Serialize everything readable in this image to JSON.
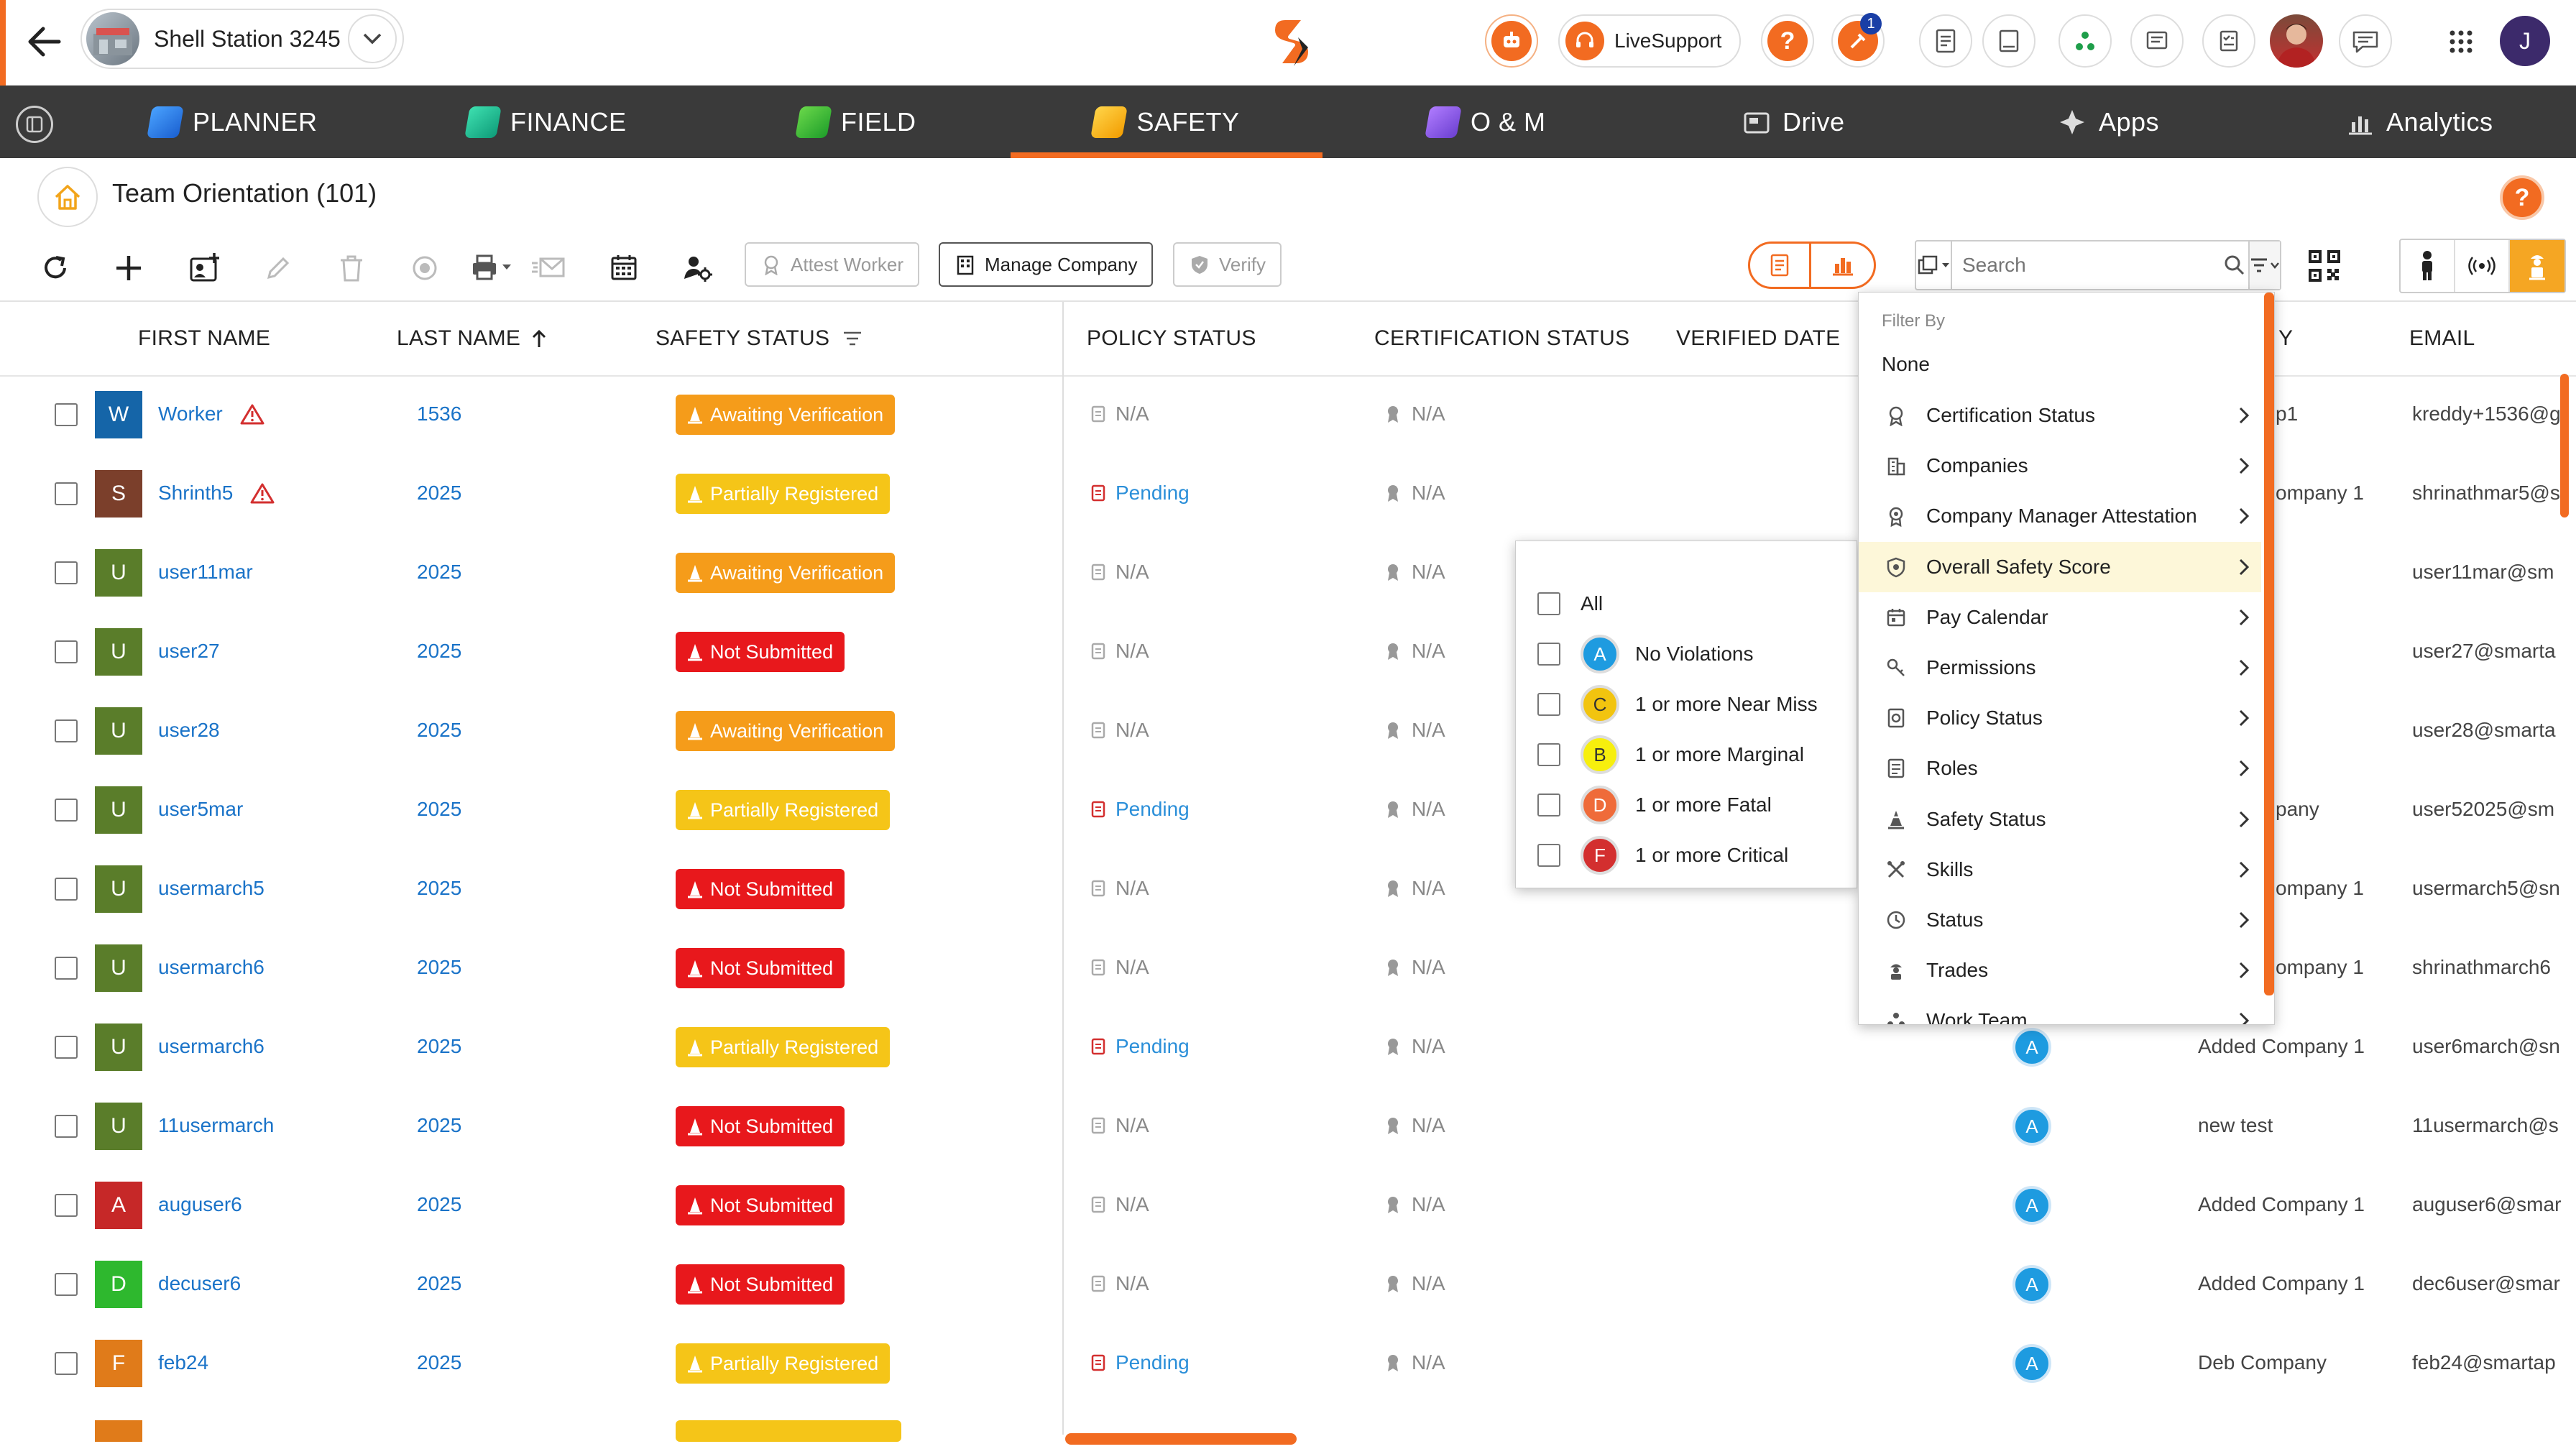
{
  "header": {
    "project_name": "Shell Station 3245",
    "live_support_label": "LiveSupport",
    "notification_count": "1",
    "user_initial": "J"
  },
  "nav": {
    "items": [
      {
        "label": "PLANNER"
      },
      {
        "label": "FINANCE"
      },
      {
        "label": "FIELD"
      },
      {
        "label": "SAFETY"
      },
      {
        "label": "O & M"
      },
      {
        "label": "Drive"
      },
      {
        "label": "Apps"
      },
      {
        "label": "Analytics"
      }
    ],
    "active": "SAFETY"
  },
  "page": {
    "title": "Team Orientation (101)"
  },
  "toolbar": {
    "attest_worker": "Attest Worker",
    "manage_company": "Manage Company",
    "verify": "Verify",
    "search_placeholder": "Search"
  },
  "table": {
    "columns": {
      "first_name": "FIRST NAME",
      "last_name": "LAST NAME",
      "safety_status": "SAFETY STATUS",
      "policy_status": "POLICY STATUS",
      "certification_status": "CERTIFICATION STATUS",
      "verified_date": "VERIFIED DATE",
      "company_partial": "Y",
      "email": "EMAIL"
    },
    "rows": [
      {
        "initial": "W",
        "avatar_color": "#1565a8",
        "first": "Worker",
        "warn": true,
        "last": "1536",
        "safety": "Awaiting Verification",
        "safety_color": "#f59c1a",
        "policy": "N/A",
        "cert": "N/A",
        "score": "",
        "company": "p1",
        "email": "kreddy+1536@g"
      },
      {
        "initial": "S",
        "avatar_color": "#7b3f2b",
        "first": "Shrinth5",
        "warn": true,
        "last": "2025",
        "safety": "Partially Registered",
        "safety_color": "#f5c518",
        "policy": "Pending",
        "cert": "N/A",
        "score": "",
        "company": "ompany 1",
        "email": "shrinathmar5@s"
      },
      {
        "initial": "U",
        "avatar_color": "#5a7d2a",
        "first": "user11mar",
        "warn": false,
        "last": "2025",
        "safety": "Awaiting Verification",
        "safety_color": "#f59c1a",
        "policy": "N/A",
        "cert": "N/A",
        "score": "",
        "company": "",
        "email": "user11mar@sm"
      },
      {
        "initial": "U",
        "avatar_color": "#5a7d2a",
        "first": "user27",
        "warn": false,
        "last": "2025",
        "safety": "Not Submitted",
        "safety_color": "#e8181c",
        "policy": "N/A",
        "cert": "N/A",
        "score": "",
        "company": "",
        "email": "user27@smarta"
      },
      {
        "initial": "U",
        "avatar_color": "#5a7d2a",
        "first": "user28",
        "warn": false,
        "last": "2025",
        "safety": "Awaiting Verification",
        "safety_color": "#f59c1a",
        "policy": "N/A",
        "cert": "N/A",
        "score": "",
        "company": "",
        "email": "user28@smarta"
      },
      {
        "initial": "U",
        "avatar_color": "#5a7d2a",
        "first": "user5mar",
        "warn": false,
        "last": "2025",
        "safety": "Partially Registered",
        "safety_color": "#f5c518",
        "policy": "Pending",
        "cert": "N/A",
        "score": "",
        "company": "pany",
        "email": "user52025@sm"
      },
      {
        "initial": "U",
        "avatar_color": "#5a7d2a",
        "first": "usermarch5",
        "warn": false,
        "last": "2025",
        "safety": "Not Submitted",
        "safety_color": "#e8181c",
        "policy": "N/A",
        "cert": "N/A",
        "score": "",
        "company": "ompany 1",
        "email": "usermarch5@sn"
      },
      {
        "initial": "U",
        "avatar_color": "#5a7d2a",
        "first": "usermarch6",
        "warn": false,
        "last": "2025",
        "safety": "Not Submitted",
        "safety_color": "#e8181c",
        "policy": "N/A",
        "cert": "N/A",
        "score": "",
        "company": "ompany 1",
        "email": "shrinathmarch6"
      },
      {
        "initial": "U",
        "avatar_color": "#5a7d2a",
        "first": "usermarch6",
        "warn": false,
        "last": "2025",
        "safety": "Partially Registered",
        "safety_color": "#f5c518",
        "policy": "Pending",
        "cert": "N/A",
        "score": "A",
        "company": "Added Company 1",
        "email": "user6march@sn"
      },
      {
        "initial": "U",
        "avatar_color": "#5a7d2a",
        "first": "11usermarch",
        "warn": false,
        "last": "2025",
        "safety": "Not Submitted",
        "safety_color": "#e8181c",
        "policy": "N/A",
        "cert": "N/A",
        "score": "A",
        "company": "new test",
        "email": "11usermarch@s"
      },
      {
        "initial": "A",
        "avatar_color": "#c62828",
        "first": "auguser6",
        "warn": false,
        "last": "2025",
        "safety": "Not Submitted",
        "safety_color": "#e8181c",
        "policy": "N/A",
        "cert": "N/A",
        "score": "A",
        "company": "Added Company 1",
        "email": "auguser6@smar"
      },
      {
        "initial": "D",
        "avatar_color": "#2eb82e",
        "first": "decuser6",
        "warn": false,
        "last": "2025",
        "safety": "Not Submitted",
        "safety_color": "#e8181c",
        "policy": "N/A",
        "cert": "N/A",
        "score": "A",
        "company": "Added Company 1",
        "email": "dec6user@smar"
      },
      {
        "initial": "F",
        "avatar_color": "#e07b1a",
        "first": "feb24",
        "warn": false,
        "last": "2025",
        "safety": "Partially Registered",
        "safety_color": "#f5c518",
        "policy": "Pending",
        "cert": "N/A",
        "score": "A",
        "company": "Deb Company",
        "email": "feb24@smartap"
      }
    ]
  },
  "filter_menu": {
    "heading": "Filter By",
    "none_label": "None",
    "items": [
      {
        "label": "Certification Status",
        "icon": "certificate-icon"
      },
      {
        "label": "Companies",
        "icon": "building-icon"
      },
      {
        "label": "Company Manager Attestation",
        "icon": "award-icon"
      },
      {
        "label": "Overall Safety Score",
        "icon": "shield-badge-icon"
      },
      {
        "label": "Pay Calendar",
        "icon": "calendar-icon"
      },
      {
        "label": "Permissions",
        "icon": "key-icon"
      },
      {
        "label": "Policy Status",
        "icon": "policy-icon"
      },
      {
        "label": "Roles",
        "icon": "roles-icon"
      },
      {
        "label": "Safety Status",
        "icon": "safety-cone-icon"
      },
      {
        "label": "Skills",
        "icon": "tools-icon"
      },
      {
        "label": "Status",
        "icon": "status-icon"
      },
      {
        "label": "Trades",
        "icon": "worker-icon"
      },
      {
        "label": "Work Team",
        "icon": "team-icon"
      }
    ],
    "highlighted": "Overall Safety Score"
  },
  "score_submenu": {
    "all_label": "All",
    "items": [
      {
        "grade": "A",
        "label": "No Violations",
        "color": "#1e9be0",
        "text_color": "#fff"
      },
      {
        "grade": "C",
        "label": "1 or more Near Miss",
        "color": "#f2c40f",
        "text_color": "#333"
      },
      {
        "grade": "B",
        "label": "1 or more Marginal",
        "color": "#f7ef0d",
        "text_color": "#333"
      },
      {
        "grade": "D",
        "label": "1 or more Fatal",
        "color": "#ef6b3a",
        "text_color": "#fff"
      },
      {
        "grade": "F",
        "label": "1 or more Critical",
        "color": "#d32f2f",
        "text_color": "#fff"
      }
    ]
  },
  "colors": {
    "accent": "#f26b21",
    "nav_bg": "#3a3a3a",
    "link": "#1a73c8",
    "menu_highlight": "#fdf7d9"
  }
}
